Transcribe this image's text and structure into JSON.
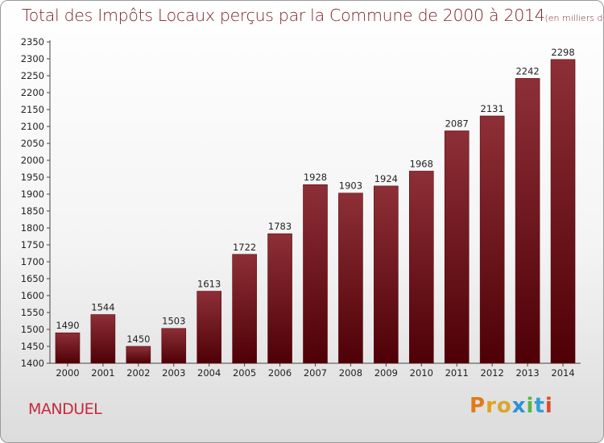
{
  "title": "Total des Impôts Locaux perçus par la Commune de 2000 à 2014",
  "unit": "(en milliers d'€)",
  "place": "MANDUEL",
  "logo": [
    "P",
    "r",
    "o",
    "x",
    "i",
    "t",
    "i"
  ],
  "colors": {
    "bar_top": "#8e2f37",
    "bar_bottom": "#4e0006",
    "title": "#7a1f2a",
    "place": "#c8283c"
  },
  "chart_data": {
    "type": "bar",
    "title": "Total des Impôts Locaux perçus par la Commune de 2000 à 2014",
    "categories": [
      "2000",
      "2001",
      "2002",
      "2003",
      "2004",
      "2005",
      "2006",
      "2007",
      "2008",
      "2009",
      "2010",
      "2011",
      "2012",
      "2013",
      "2014"
    ],
    "values": [
      1490,
      1544,
      1450,
      1503,
      1613,
      1722,
      1783,
      1928,
      1903,
      1924,
      1968,
      2087,
      2131,
      2242,
      2298
    ],
    "ylim": [
      1400,
      2350
    ],
    "ytick_step": 50,
    "grid": false,
    "legend": "none"
  }
}
